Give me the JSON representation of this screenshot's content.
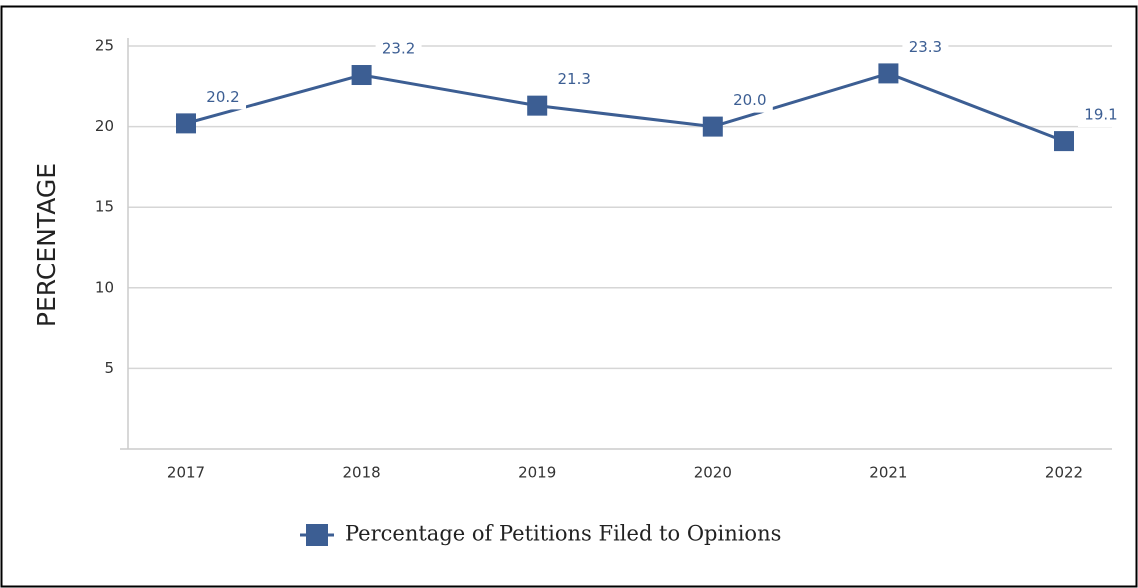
{
  "chart_data": {
    "type": "line",
    "y_label": "PERCENTAGE",
    "categories": [
      "2017",
      "2018",
      "2019",
      "2020",
      "2021",
      "2022"
    ],
    "series": [
      {
        "name": "Percentage of Petitions Filed to Opinions",
        "color": "#3c5e93",
        "values": [
          20.2,
          23.2,
          21.3,
          20.0,
          23.3,
          19.1
        ],
        "value_labels": [
          "20.2",
          "23.2",
          "21.3",
          "20.0",
          "23.3",
          "19.1"
        ]
      }
    ],
    "ylim": [
      0,
      25
    ],
    "yticks": [
      5,
      10,
      15,
      20,
      25
    ],
    "grid": true,
    "legend": "bottom"
  }
}
